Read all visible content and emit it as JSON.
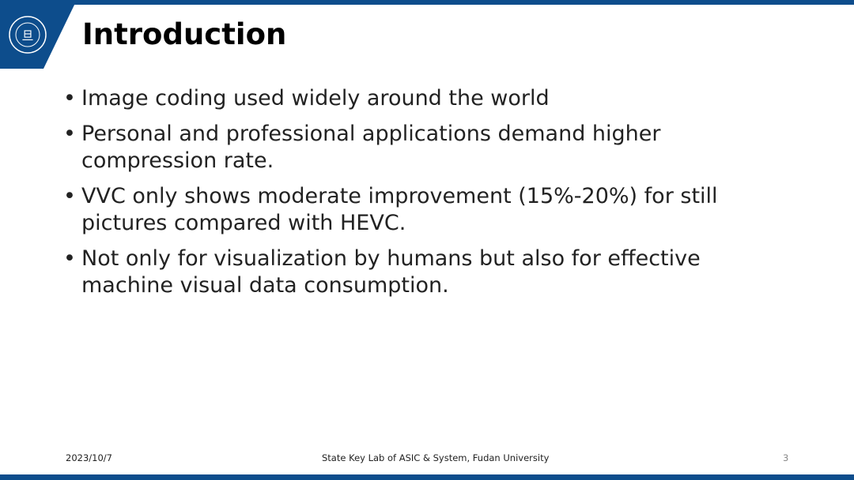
{
  "slide": {
    "title": "Introduction",
    "bullets": [
      "Image coding used widely around the world",
      "Personal and professional applications demand higher compression rate.",
      "VVC only shows moderate improvement (15%-20%) for still pictures compared with HEVC.",
      "Not only for visualization by humans but also for effective machine visual data consumption."
    ],
    "bullet_glyph": "•"
  },
  "logo": {
    "text": "FUDAN UNIVERSITY 1905"
  },
  "footer": {
    "date": "2023/10/7",
    "center": "State Key Lab of ASIC & System, Fudan University",
    "page": "3"
  },
  "colors": {
    "brand_blue": "#0d4d8c"
  }
}
